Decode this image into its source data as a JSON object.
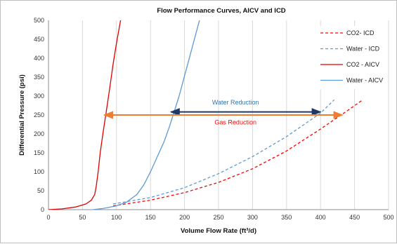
{
  "chart_data": {
    "type": "line",
    "title": "Flow Performance Curves, AICV and ICD",
    "xlabel": "Volume Flow Rate (ft³/d)",
    "ylabel": "Differential Pressure (psi)",
    "xlim": [
      0,
      500
    ],
    "ylim": [
      0,
      500
    ],
    "xticks": [
      0,
      50,
      100,
      150,
      200,
      250,
      300,
      350,
      400,
      450,
      500
    ],
    "yticks": [
      0,
      50,
      100,
      150,
      200,
      250,
      300,
      350,
      400,
      450,
      500
    ],
    "grid": "vertical",
    "legend_position": "top-right",
    "series": [
      {
        "name": "CO2- ICD",
        "color": "#ff0000",
        "dash": true,
        "points": [
          [
            95,
            10
          ],
          [
            150,
            25
          ],
          [
            200,
            45
          ],
          [
            250,
            72
          ],
          [
            300,
            108
          ],
          [
            350,
            155
          ],
          [
            400,
            213
          ],
          [
            440,
            262
          ],
          [
            462,
            290
          ]
        ]
      },
      {
        "name": "Water - ICD",
        "color": "#5b9bd5",
        "dash": true,
        "points": [
          [
            95,
            15
          ],
          [
            150,
            32
          ],
          [
            200,
            58
          ],
          [
            250,
            95
          ],
          [
            300,
            140
          ],
          [
            350,
            193
          ],
          [
            400,
            255
          ],
          [
            420,
            290
          ]
        ]
      },
      {
        "name": "CO2 - AICV",
        "color": "#e00000",
        "dash": false,
        "points": [
          [
            0,
            0
          ],
          [
            20,
            2
          ],
          [
            40,
            7
          ],
          [
            55,
            15
          ],
          [
            63,
            25
          ],
          [
            68,
            40
          ],
          [
            70,
            60
          ],
          [
            73,
            100
          ],
          [
            76,
            150
          ],
          [
            80,
            200
          ],
          [
            85,
            260
          ],
          [
            90,
            320
          ],
          [
            95,
            385
          ],
          [
            100,
            440
          ],
          [
            106,
            500
          ]
        ]
      },
      {
        "name": "Water - AICV",
        "color": "#5b9bd5",
        "dash": false,
        "points": [
          [
            65,
            0
          ],
          [
            80,
            3
          ],
          [
            100,
            10
          ],
          [
            115,
            20
          ],
          [
            130,
            40
          ],
          [
            140,
            65
          ],
          [
            150,
            100
          ],
          [
            160,
            140
          ],
          [
            170,
            180
          ],
          [
            178,
            220
          ],
          [
            185,
            260
          ],
          [
            192,
            300
          ],
          [
            198,
            340
          ],
          [
            204,
            380
          ],
          [
            210,
            420
          ],
          [
            216,
            460
          ],
          [
            222,
            500
          ]
        ]
      }
    ],
    "annotations": [
      {
        "text": "Water Reduction",
        "color": "#2e75b6",
        "arrow_from": [
          180,
          258
        ],
        "arrow_to": [
          400,
          258
        ],
        "arrow_color": "#1f3864",
        "label_at": [
          275,
          278
        ]
      },
      {
        "text": "Gas Reduction",
        "color": "#ff0000",
        "arrow_from": [
          82,
          250
        ],
        "arrow_to": [
          432,
          250
        ],
        "arrow_color": "#ed7d31",
        "label_at": [
          275,
          225
        ]
      }
    ]
  }
}
